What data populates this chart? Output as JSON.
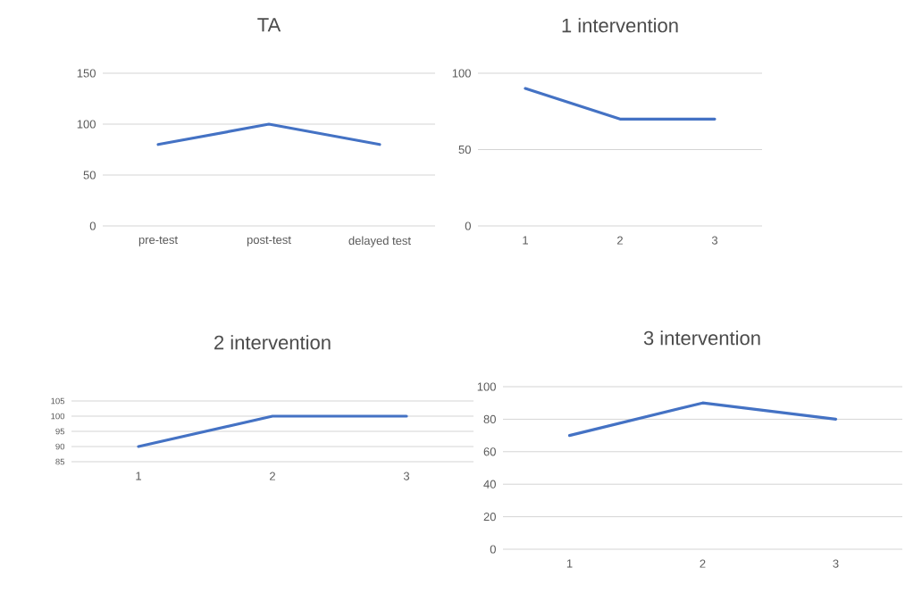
{
  "chart_data": [
    {
      "type": "line",
      "title": "TA",
      "categories": [
        "pre-test",
        "post-test",
        "delayed test"
      ],
      "values": [
        80,
        100,
        80
      ],
      "color": "#4472c4",
      "ylim": [
        0,
        150
      ],
      "yticks": [
        0,
        50,
        100,
        150
      ],
      "grid": "y"
    },
    {
      "type": "line",
      "title": "1 intervention",
      "categories": [
        "1",
        "2",
        "3"
      ],
      "values": [
        90,
        70,
        70
      ],
      "color": "#4472c4",
      "ylim": [
        0,
        100
      ],
      "yticks": [
        0,
        50,
        100
      ],
      "grid": "y"
    },
    {
      "type": "line",
      "title": "2 intervention",
      "categories": [
        "1",
        "2",
        "3"
      ],
      "values": [
        90,
        100,
        100
      ],
      "color": "#4472c4",
      "ylim": [
        85,
        105
      ],
      "yticks": [
        85,
        90,
        95,
        100,
        105
      ],
      "grid": "y"
    },
    {
      "type": "line",
      "title": "3 intervention",
      "categories": [
        "1",
        "2",
        "3"
      ],
      "values": [
        70,
        90,
        80
      ],
      "color": "#4472c4",
      "ylim": [
        0,
        100
      ],
      "yticks": [
        0,
        20,
        40,
        60,
        80,
        100
      ],
      "grid": "y"
    }
  ]
}
